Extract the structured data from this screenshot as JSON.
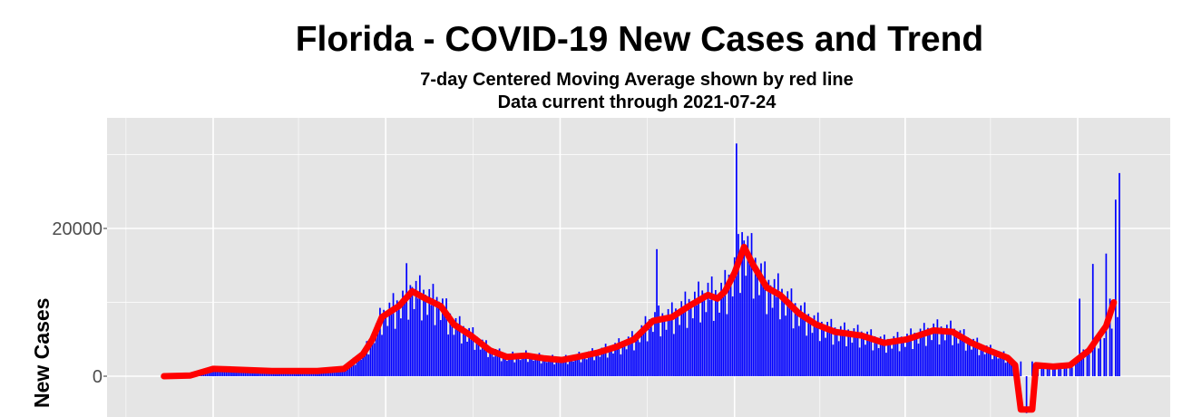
{
  "chart_data": {
    "type": "bar",
    "title": "Florida - COVID-19 New Cases and Trend",
    "subtitle_1": "7-day Centered Moving Average shown by red line",
    "subtitle_2": "Data current through 2021-07-24",
    "xlabel": "",
    "ylabel": "New Cases",
    "y_ticks": [
      "0",
      "20000"
    ],
    "y_tick_values": [
      0,
      20000
    ],
    "ylim": [
      -5500,
      35000
    ],
    "xlim": [
      "2020-02-10",
      "2021-08-20"
    ],
    "grid": true,
    "colors": {
      "bars": "#0000ff",
      "trend": "#ff0000",
      "panel": "#e5e5e5",
      "grid": "#ffffff"
    },
    "moving_average": [
      [
        "2020-03-06",
        0
      ],
      [
        "2020-03-20",
        100
      ],
      [
        "2020-04-01",
        1000
      ],
      [
        "2020-04-13",
        900
      ],
      [
        "2020-05-02",
        700
      ],
      [
        "2020-05-26",
        700
      ],
      [
        "2020-06-09",
        1000
      ],
      [
        "2020-06-19",
        3000
      ],
      [
        "2020-06-24",
        5000
      ],
      [
        "2020-06-29",
        8000
      ],
      [
        "2020-07-08",
        9500
      ],
      [
        "2020-07-15",
        11500
      ],
      [
        "2020-07-22",
        10500
      ],
      [
        "2020-07-30",
        9500
      ],
      [
        "2020-08-06",
        7000
      ],
      [
        "2020-08-15",
        5500
      ],
      [
        "2020-08-25",
        3500
      ],
      [
        "2020-09-03",
        2600
      ],
      [
        "2020-09-13",
        2800
      ],
      [
        "2020-09-23",
        2400
      ],
      [
        "2020-10-02",
        2200
      ],
      [
        "2020-10-12",
        2700
      ],
      [
        "2020-10-21",
        3200
      ],
      [
        "2020-10-31",
        4000
      ],
      [
        "2020-11-09",
        5000
      ],
      [
        "2020-11-19",
        7500
      ],
      [
        "2020-11-29",
        8000
      ],
      [
        "2020-12-08",
        9500
      ],
      [
        "2020-12-18",
        11000
      ],
      [
        "2020-12-23",
        10500
      ],
      [
        "2020-12-27",
        11500
      ],
      [
        "2021-01-01",
        14000
      ],
      [
        "2021-01-06",
        17500
      ],
      [
        "2021-01-11",
        15000
      ],
      [
        "2021-01-18",
        12000
      ],
      [
        "2021-01-25",
        11000
      ],
      [
        "2021-02-04",
        8500
      ],
      [
        "2021-02-13",
        7000
      ],
      [
        "2021-02-23",
        6000
      ],
      [
        "2021-03-09",
        5500
      ],
      [
        "2021-03-21",
        4500
      ],
      [
        "2021-04-02",
        5000
      ],
      [
        "2021-04-16",
        6200
      ],
      [
        "2021-04-26",
        6000
      ],
      [
        "2021-05-06",
        4500
      ],
      [
        "2021-05-15",
        3500
      ],
      [
        "2021-05-25",
        2500
      ],
      [
        "2021-05-29",
        1500
      ],
      [
        "2021-06-01",
        -4500
      ],
      [
        "2021-06-07",
        -4500
      ],
      [
        "2021-06-09",
        1500
      ],
      [
        "2021-06-18",
        1300
      ],
      [
        "2021-06-27",
        1500
      ],
      [
        "2021-07-07",
        3500
      ],
      [
        "2021-07-11",
        5000
      ],
      [
        "2021-07-16",
        6800
      ],
      [
        "2021-07-20",
        10000
      ]
    ],
    "new_cases_notable": [
      [
        "2020-07-12",
        15300
      ],
      [
        "2021-01-02",
        31500
      ],
      [
        "2021-01-05",
        19500
      ],
      [
        "2020-11-21",
        17200
      ],
      [
        "2021-06-04",
        -5000
      ],
      [
        "2021-07-02",
        10500
      ],
      [
        "2021-07-09",
        15200
      ],
      [
        "2021-07-16",
        16600
      ],
      [
        "2021-07-21",
        23900
      ],
      [
        "2021-07-23",
        27500
      ]
    ]
  }
}
